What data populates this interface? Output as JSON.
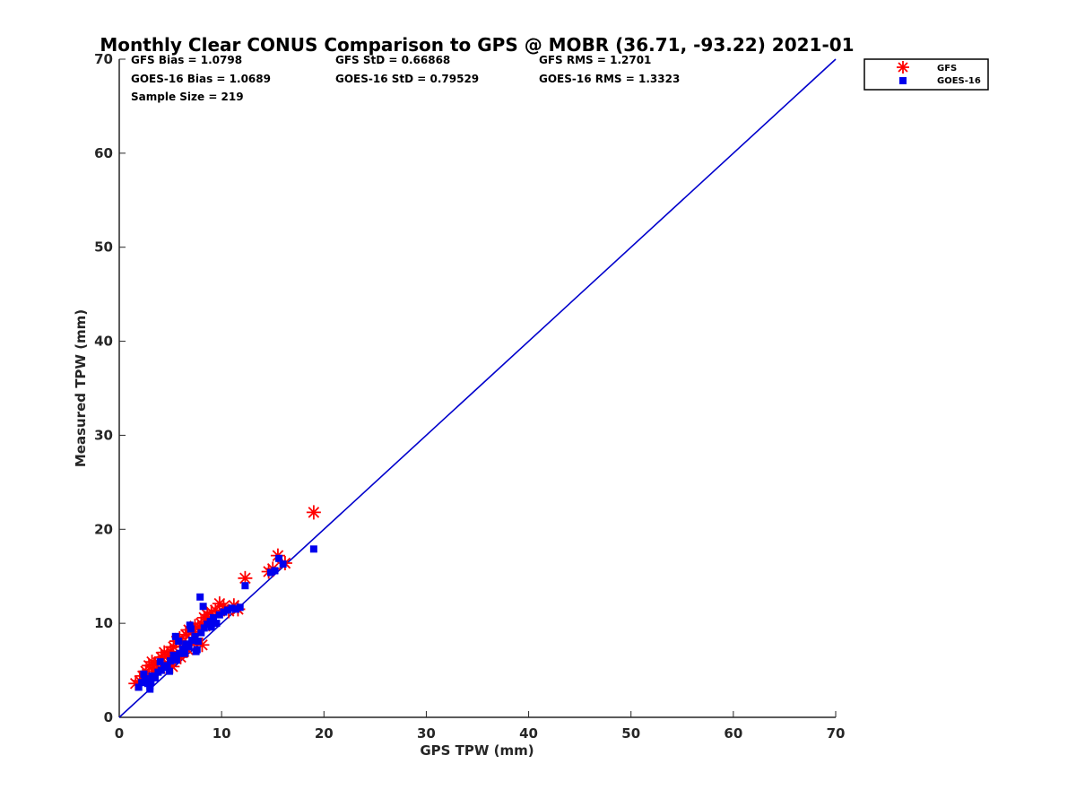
{
  "chart_data": {
    "type": "scatter",
    "title": "Monthly Clear CONUS Comparison to GPS @ MOBR (36.71, -93.22) 2021-01",
    "xlabel": "GPS TPW (mm)",
    "ylabel": "Measured TPW (mm)",
    "xlim": [
      0,
      70
    ],
    "ylim": [
      0,
      70
    ],
    "xticks": [
      "0",
      "10",
      "20",
      "30",
      "40",
      "50",
      "60",
      "70"
    ],
    "yticks": [
      "0",
      "10",
      "20",
      "30",
      "40",
      "50",
      "60",
      "70"
    ],
    "grid": false,
    "legend_position": "top-right",
    "reference_line": {
      "x": [
        0,
        70
      ],
      "y": [
        0,
        70
      ],
      "color": "#0000cc"
    },
    "stats": {
      "gfs_bias": "GFS Bias = 1.0798",
      "gfs_std": "GFS StD = 0.66868",
      "gfs_rms": "GFS RMS = 1.2701",
      "goes_bias": "GOES-16 Bias = 1.0689",
      "goes_std": "GOES-16 StD = 0.79529",
      "goes_rms": "GOES-16 RMS = 1.3323",
      "sample_size": "Sample Size = 219"
    },
    "series": [
      {
        "name": "GFS",
        "marker": "asterisk",
        "color": "#ff0000",
        "x": [
          1.6,
          2.0,
          2.3,
          2.6,
          2.9,
          3.2,
          3.5,
          3.8,
          4.1,
          4.4,
          4.7,
          5.0,
          5.3,
          5.6,
          5.9,
          6.2,
          6.5,
          6.8,
          7.1,
          7.4,
          7.7,
          8.0,
          8.3,
          8.6,
          9.0,
          9.4,
          9.8,
          10.2,
          10.7,
          11.2,
          11.6,
          3.3,
          4.0,
          5.2,
          6.0,
          6.7,
          7.3,
          8.1,
          2.8,
          4.9,
          6.3,
          7.5,
          8.8,
          12.3,
          14.6,
          15.0,
          15.5,
          16.2,
          19.0
        ],
        "y": [
          3.6,
          3.9,
          4.4,
          4.9,
          5.5,
          5.9,
          5.6,
          5.8,
          6.4,
          6.9,
          6.6,
          7.0,
          7.5,
          8.1,
          8.4,
          8.0,
          8.8,
          9.3,
          9.1,
          9.7,
          9.5,
          10.0,
          10.6,
          10.9,
          11.2,
          11.4,
          12.1,
          11.8,
          11.3,
          11.9,
          11.5,
          4.9,
          5.2,
          5.4,
          6.4,
          7.2,
          7.9,
          7.7,
          4.0,
          5.9,
          7.0,
          8.4,
          9.9,
          14.8,
          15.5,
          15.8,
          17.2,
          16.4,
          21.8
        ]
      },
      {
        "name": "GOES-16",
        "marker": "square",
        "color": "#0000ee",
        "x": [
          1.9,
          2.2,
          2.5,
          2.8,
          3.0,
          3.2,
          3.5,
          3.8,
          4.1,
          4.4,
          4.7,
          5.0,
          5.3,
          5.6,
          5.9,
          6.2,
          6.5,
          6.8,
          7.1,
          7.4,
          7.7,
          8.0,
          8.3,
          8.6,
          8.9,
          9.2,
          9.5,
          9.8,
          10.2,
          10.6,
          11.0,
          11.4,
          11.8,
          2.4,
          3.1,
          4.0,
          4.9,
          5.8,
          6.4,
          7.0,
          7.6,
          8.2,
          9.0,
          3.0,
          5.5,
          6.9,
          7.9,
          7.5,
          12.3,
          14.8,
          15.2,
          15.6,
          16.0,
          19.0
        ],
        "y": [
          3.2,
          3.7,
          4.1,
          3.6,
          3.0,
          4.4,
          4.2,
          4.8,
          5.0,
          5.3,
          5.5,
          6.0,
          6.6,
          6.1,
          6.8,
          7.3,
          7.8,
          7.5,
          8.2,
          8.6,
          8.1,
          9.0,
          9.5,
          9.9,
          10.2,
          10.6,
          10.0,
          10.9,
          11.2,
          11.4,
          11.6,
          11.5,
          11.7,
          4.6,
          3.8,
          5.9,
          4.9,
          8.1,
          6.8,
          9.4,
          7.2,
          11.8,
          9.6,
          3.3,
          8.6,
          9.8,
          12.8,
          7.0,
          14.0,
          15.4,
          15.6,
          16.9,
          16.3,
          17.9
        ]
      }
    ]
  }
}
